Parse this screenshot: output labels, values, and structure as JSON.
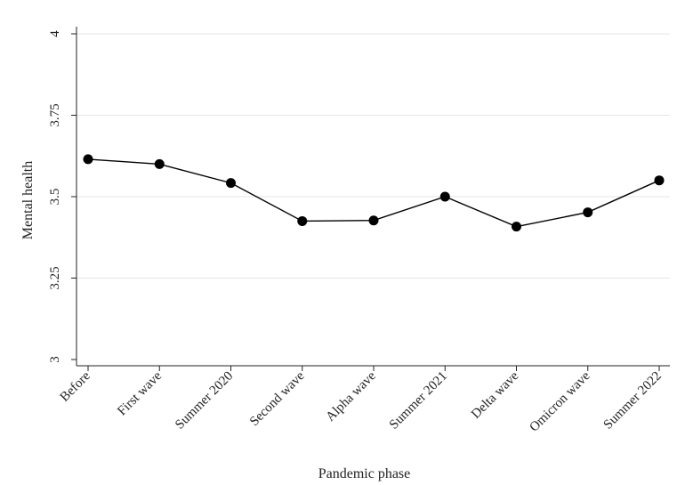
{
  "chart_data": {
    "type": "line",
    "categories": [
      "Before",
      "First wave",
      "Summer 2020",
      "Second wave",
      "Alpha wave",
      "Summer 2021",
      "Delta wave",
      "Omicron wave",
      "Summer 2022"
    ],
    "series": [
      {
        "values": [
          3.615,
          3.6,
          3.542,
          3.425,
          3.427,
          3.5,
          3.408,
          3.452,
          3.55
        ]
      }
    ],
    "xlabel": "Pandemic phase",
    "ylabel": "Mental health",
    "ylim": [
      3,
      4
    ],
    "yticks": [
      3,
      3.25,
      3.5,
      3.75,
      4
    ],
    "ytick_labels": [
      "3",
      "3.25",
      "3.5",
      "3.75",
      "4"
    ],
    "grid": true,
    "legend": "none",
    "colors": {
      "line": "#000000",
      "marker": "#000000",
      "grid": "#e6e6e6"
    }
  }
}
